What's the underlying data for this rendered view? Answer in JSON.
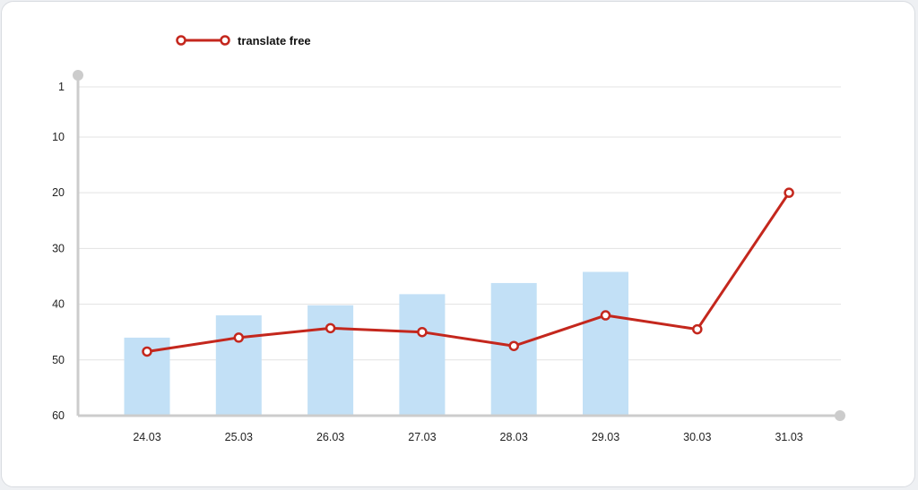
{
  "chart_data": {
    "type": "bar+line",
    "categories": [
      "24.03",
      "25.03",
      "26.03",
      "27.03",
      "28.03",
      "29.03",
      "30.03",
      "31.03"
    ],
    "y_ticks": [
      "1",
      "10",
      "20",
      "30",
      "40",
      "50",
      "60"
    ],
    "y_tick_values": [
      1,
      10,
      20,
      30,
      40,
      50,
      60
    ],
    "ylim": [
      1,
      60
    ],
    "y_inverted": true,
    "bar_series": {
      "name": "",
      "values": [
        46,
        42,
        40.2,
        38.2,
        36.2,
        34.2,
        null,
        null
      ]
    },
    "line_series": {
      "name": "translate free",
      "values": [
        48.5,
        46,
        44.3,
        45,
        47.5,
        42,
        44.5,
        20
      ]
    },
    "legend_position": "top-left",
    "grid": true
  },
  "colors": {
    "bar": "#c2e0f6",
    "line": "#c4271d",
    "grid": "#e3e3e3",
    "axis": "#cccccc",
    "marker_fill": "#ffffff"
  }
}
